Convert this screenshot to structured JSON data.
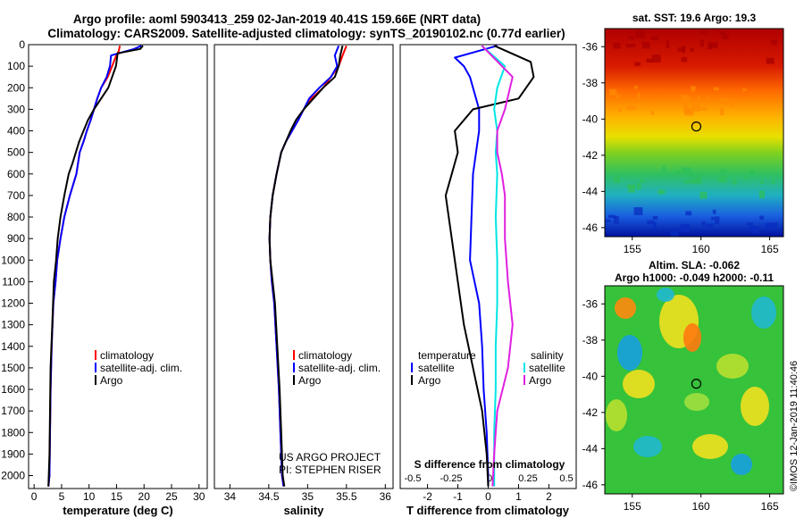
{
  "header": {
    "title_line1": "Argo profile: aoml 5903413_259 02-Jan-2019 40.41S 159.66E (NRT data)",
    "title_line2": "Climatology: CARS2009. Satellite-adjusted climatology: synTS_20190102.nc (0.77d earlier)"
  },
  "credits": {
    "project": "US ARGO PROJECT",
    "pi": "PI: STEPHEN RISER",
    "imos": "©IMOS 12-Jan-2019 11:40:46"
  },
  "colors": {
    "climatology": "#ff0000",
    "satellite": "#0000ff",
    "argo": "#000000",
    "salinity_sat": "#00e5e5",
    "salinity_argo": "#e020e0"
  },
  "chart_data": [
    {
      "type": "line",
      "id": "temperature",
      "xlabel": "temperature (deg C)",
      "ylabel": "",
      "xlim": [
        -1,
        31.5
      ],
      "ylim": [
        2060,
        0
      ],
      "xticks": [
        0,
        5,
        10,
        15,
        20,
        25,
        30
      ],
      "xtick_labels": [
        "0",
        "5",
        "10",
        "15",
        "20",
        "25",
        "30"
      ],
      "yticks": [
        0,
        100,
        200,
        300,
        400,
        500,
        600,
        700,
        800,
        900,
        1000,
        1100,
        1200,
        1300,
        1400,
        1500,
        1600,
        1700,
        1800,
        1900,
        2000
      ],
      "ytick_labels": [
        "0",
        "100",
        "200",
        "300",
        "400",
        "500",
        "600",
        "700",
        "800",
        "900",
        "1000",
        "1100",
        "1200",
        "1300",
        "1400",
        "1500",
        "1600",
        "1700",
        "1800",
        "1900",
        "2000"
      ],
      "legend": [
        "climatology",
        "satellite-adj. clim.",
        "Argo"
      ],
      "series": [
        {
          "name": "climatology",
          "color": "#ff0000",
          "x": [
            15.6,
            15.4,
            14.8,
            14.2,
            13.4,
            12.2,
            11.5,
            10.9,
            10.3,
            9.6,
            9.0,
            8.3,
            7.7,
            6.5,
            5.5,
            4.8,
            4.2,
            3.9,
            3.5,
            3.2,
            3.0,
            2.9,
            2.8,
            2.6
          ],
          "y": [
            5,
            30,
            60,
            100,
            150,
            200,
            250,
            300,
            350,
            400,
            450,
            500,
            600,
            700,
            800,
            900,
            1000,
            1100,
            1200,
            1400,
            1600,
            1800,
            2000,
            2050
          ]
        },
        {
          "name": "satellite-adj. clim.",
          "color": "#0000ff",
          "x": [
            19.5,
            18.2,
            14.0,
            13.8,
            13.2,
            12.2,
            11.5,
            10.9,
            10.3,
            9.6,
            9.0,
            8.3,
            7.7,
            6.5,
            5.5,
            4.8,
            4.2,
            3.9,
            3.5,
            3.2,
            3.0,
            2.9,
            2.8,
            2.6
          ],
          "y": [
            5,
            20,
            50,
            100,
            150,
            200,
            250,
            300,
            350,
            400,
            450,
            500,
            600,
            700,
            800,
            900,
            1000,
            1100,
            1200,
            1400,
            1600,
            1800,
            2000,
            2050
          ]
        },
        {
          "name": "Argo",
          "color": "#000000",
          "x": [
            19.8,
            19.3,
            15.2,
            14.9,
            14.2,
            13.5,
            12.2,
            10.9,
            9.8,
            9.0,
            8.2,
            7.6,
            7.0,
            6.3,
            5.5,
            4.8,
            4.3,
            4.0,
            3.6,
            3.3,
            3.0,
            2.9,
            2.8,
            2.6
          ],
          "y": [
            5,
            20,
            40,
            100,
            150,
            200,
            250,
            300,
            350,
            400,
            450,
            500,
            550,
            600,
            700,
            800,
            900,
            1000,
            1100,
            1300,
            1500,
            1700,
            1900,
            2050
          ]
        }
      ]
    },
    {
      "type": "line",
      "id": "salinity",
      "xlabel": "salinity",
      "ylabel": "",
      "xlim": [
        33.8,
        36.1
      ],
      "ylim": [
        2060,
        0
      ],
      "xticks": [
        34,
        34.5,
        35,
        35.5,
        36
      ],
      "xtick_labels": [
        "34",
        "34.5",
        "35",
        "35.5",
        "36"
      ],
      "legend": [
        "climatology",
        "satellite-adj. clim.",
        "Argo"
      ],
      "series": [
        {
          "name": "climatology",
          "color": "#ff0000",
          "x": [
            35.5,
            35.45,
            35.4,
            35.3,
            35.2,
            35.05,
            34.95,
            34.88,
            34.8,
            34.72,
            34.66,
            34.6,
            34.55,
            34.52,
            34.51,
            34.52,
            34.54,
            34.57,
            34.6,
            34.63,
            34.65,
            34.67,
            34.69
          ],
          "y": [
            5,
            50,
            100,
            150,
            200,
            250,
            300,
            350,
            400,
            450,
            500,
            600,
            700,
            800,
            900,
            1000,
            1100,
            1200,
            1400,
            1600,
            1800,
            2000,
            2050
          ]
        },
        {
          "name": "satellite-adj. clim.",
          "color": "#0000ff",
          "x": [
            35.4,
            35.35,
            35.38,
            35.3,
            35.15,
            35.02,
            34.95,
            34.88,
            34.8,
            34.72,
            34.66,
            34.6,
            34.55,
            34.52,
            34.51,
            34.52,
            34.54,
            34.57,
            34.6,
            34.63,
            34.65,
            34.67,
            34.69
          ],
          "y": [
            5,
            50,
            100,
            150,
            200,
            250,
            300,
            350,
            400,
            450,
            500,
            600,
            700,
            800,
            900,
            1000,
            1100,
            1200,
            1400,
            1600,
            1800,
            2000,
            2050
          ]
        },
        {
          "name": "Argo",
          "color": "#000000",
          "x": [
            35.45,
            35.42,
            35.4,
            35.35,
            35.2,
            34.95,
            34.85,
            34.78,
            34.72,
            34.66,
            34.6,
            34.55,
            34.52,
            34.51,
            34.52,
            34.55,
            34.58,
            34.61,
            34.64,
            34.66,
            34.68,
            34.7
          ],
          "y": [
            5,
            50,
            100,
            150,
            200,
            300,
            350,
            400,
            450,
            500,
            600,
            700,
            800,
            900,
            1000,
            1100,
            1200,
            1400,
            1600,
            1800,
            2000,
            2050
          ]
        }
      ]
    },
    {
      "type": "line",
      "id": "difference",
      "xlabel": "T difference from climatology",
      "xlabel_top": "S difference from climatology",
      "xlim": [
        -2.9,
        2.9
      ],
      "ylim": [
        2060,
        0
      ],
      "xticks": [
        -2,
        -1,
        0,
        1,
        2
      ],
      "xtick_labels": [
        "-2",
        "-1",
        "0",
        "1",
        "2"
      ],
      "sticks": [
        -0.5,
        -0.25,
        0,
        0.25,
        0.5
      ],
      "stick_labels": [
        "-0.5",
        "-0.25",
        "0",
        "0.25",
        "0.5"
      ],
      "legend_temperature_title": "temperature",
      "legend_salinity_title": "salinity",
      "legend_temperature": [
        "satellite",
        "Argo"
      ],
      "legend_salinity": [
        "satellite",
        "Argo"
      ],
      "series": [
        {
          "name": "temperature satellite",
          "color": "#0000ff",
          "axis": "T",
          "x": [
            0.3,
            -1.1,
            -0.8,
            -0.6,
            -0.5,
            -0.3,
            -0.3,
            -0.4,
            -0.5,
            -0.55,
            -0.6,
            -0.3,
            -0.2,
            -0.15,
            -0.05,
            0,
            0
          ],
          "y": [
            5,
            60,
            100,
            150,
            200,
            300,
            400,
            500,
            600,
            800,
            1000,
            1200,
            1400,
            1600,
            1800,
            2000,
            2050
          ]
        },
        {
          "name": "temperature Argo",
          "color": "#000000",
          "axis": "T",
          "x": [
            0.2,
            1.4,
            1.5,
            1.0,
            -0.5,
            -1.1,
            -1.0,
            -1.2,
            -1.4,
            -1.2,
            -1.0,
            -0.8,
            -0.5,
            -0.2,
            -0.05,
            0
          ],
          "y": [
            5,
            80,
            150,
            250,
            300,
            400,
            500,
            600,
            700,
            900,
            1100,
            1300,
            1500,
            1700,
            1900,
            2050
          ]
        },
        {
          "name": "salinity satellite",
          "color": "#00e5e5",
          "axis": "S",
          "x": [
            -0.05,
            0.1,
            0.05,
            0.03,
            0.05,
            0.04,
            0.05,
            0.04,
            0.05,
            0.05,
            0.04,
            0.04,
            0.03,
            0.03
          ],
          "y": [
            5,
            100,
            200,
            300,
            400,
            500,
            600,
            800,
            1000,
            1200,
            1400,
            1600,
            1800,
            2050
          ]
        },
        {
          "name": "salinity Argo",
          "color": "#e020e0",
          "axis": "S",
          "x": [
            -0.05,
            0.15,
            0.1,
            0.05,
            0.05,
            0.08,
            0.1,
            0.1,
            0.12,
            0.15,
            0.12,
            0.05,
            0.03,
            0.02
          ],
          "y": [
            5,
            150,
            300,
            400,
            500,
            600,
            700,
            900,
            1100,
            1300,
            1500,
            1700,
            1900,
            2050
          ]
        }
      ]
    },
    {
      "type": "heatmap",
      "id": "sst_map",
      "title": "sat. SST: 19.6 Argo: 19.3",
      "xlim": [
        153,
        166
      ],
      "ylim": [
        -46.5,
        -35
      ],
      "xticks": [
        155,
        160,
        165
      ],
      "xtick_labels": [
        "155",
        "160",
        "165"
      ],
      "yticks": [
        -36,
        -38,
        -40,
        -42,
        -44,
        -46
      ],
      "ytick_labels": [
        "-36",
        "-38",
        "-40",
        "-42",
        "-44",
        "-46"
      ],
      "marker": {
        "lon": 159.66,
        "lat": -40.41
      }
    },
    {
      "type": "heatmap",
      "id": "sla_map",
      "title": "Altim. SLA: -0.062",
      "subtitle": "Argo h1000: -0.049 h2000: -0.11",
      "xlim": [
        153,
        166
      ],
      "ylim": [
        -46.5,
        -35
      ],
      "xticks": [
        155,
        160,
        165
      ],
      "xtick_labels": [
        "155",
        "160",
        "165"
      ],
      "yticks": [
        -36,
        -38,
        -40,
        -42,
        -44,
        -46
      ],
      "ytick_labels": [
        "-36",
        "-38",
        "-40",
        "-42",
        "-44",
        "-46"
      ],
      "marker": {
        "lon": 159.66,
        "lat": -40.41
      }
    }
  ]
}
